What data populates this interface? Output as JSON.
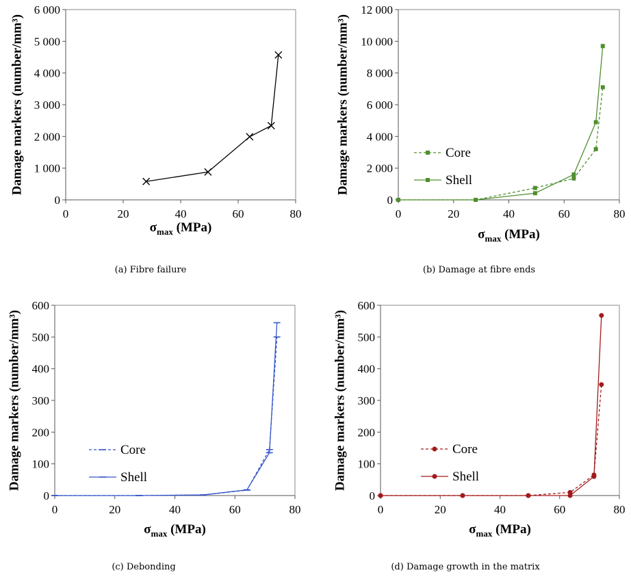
{
  "chart_data": [
    {
      "id": "a",
      "type": "line",
      "caption": "(a) Fibre failure",
      "ylabel": "Damage markers (number/mm³)",
      "xlabel_main": "σ",
      "xlabel_sub": "max",
      "xlabel_unit": " (MPa)",
      "xlim": [
        0,
        80
      ],
      "ylim": [
        0,
        6000
      ],
      "xticks": [
        0,
        20,
        40,
        60,
        80
      ],
      "xtick_labels": [
        "0",
        "20",
        "40",
        "60",
        "80"
      ],
      "yticks": [
        0,
        1000,
        2000,
        3000,
        4000,
        5000,
        6000
      ],
      "ytick_labels": [
        "0",
        "1 000",
        "2 000",
        "3 000",
        "4 000",
        "5 000",
        "6 000"
      ],
      "color": "#000000",
      "series": [
        {
          "name": "",
          "marker": "x",
          "dash": false,
          "x": [
            28,
            49.5,
            64,
            71.5,
            74
          ],
          "y": [
            580,
            880,
            1990,
            2340,
            4570
          ]
        }
      ]
    },
    {
      "id": "b",
      "type": "line",
      "caption": "(b) Damage at fibre ends",
      "ylabel": "Damage markers (number/mm³)",
      "xlabel_main": "σ",
      "xlabel_sub": "max",
      "xlabel_unit": " (MPa)",
      "xlim": [
        0,
        80
      ],
      "ylim": [
        0,
        12000
      ],
      "xticks": [
        0,
        20,
        40,
        60,
        80
      ],
      "xtick_labels": [
        "0",
        "20",
        "40",
        "60",
        "80"
      ],
      "yticks": [
        0,
        2000,
        4000,
        6000,
        8000,
        10000,
        12000
      ],
      "ytick_labels": [
        "0",
        "2 000",
        "4 000",
        "6 000",
        "8 000",
        "10 000",
        "12 000"
      ],
      "color": "#4f8f2f",
      "legend": {
        "position": "middle-left"
      },
      "series": [
        {
          "name": "Core",
          "marker": "square",
          "dash": true,
          "x": [
            0,
            28,
            49.5,
            63.5,
            71.5,
            74
          ],
          "y": [
            0,
            0,
            750,
            1350,
            3200,
            7100
          ]
        },
        {
          "name": "Shell",
          "marker": "square",
          "dash": false,
          "x": [
            0,
            28,
            49.5,
            63.5,
            71.5,
            74
          ],
          "y": [
            0,
            0,
            420,
            1600,
            4900,
            9700
          ]
        }
      ]
    },
    {
      "id": "c",
      "type": "line",
      "caption": "(c) Debonding",
      "ylabel": "Damage markers (number/mm³)",
      "xlabel_main": "σ",
      "xlabel_sub": "max",
      "xlabel_unit": " (MPa)",
      "xlim": [
        0,
        80
      ],
      "ylim": [
        0,
        600
      ],
      "xticks": [
        0,
        20,
        40,
        60,
        80
      ],
      "xtick_labels": [
        "0",
        "20",
        "40",
        "60",
        "80"
      ],
      "yticks": [
        0,
        100,
        200,
        300,
        400,
        500,
        600
      ],
      "ytick_labels": [
        "0",
        "100",
        "200",
        "300",
        "400",
        "500",
        "600"
      ],
      "color": "#3355cc",
      "legend": {
        "position": "lower-left"
      },
      "series": [
        {
          "name": "Core",
          "marker": "dash",
          "dash": true,
          "x": [
            0,
            28,
            49.5,
            64,
            71.5,
            74
          ],
          "y": [
            0,
            0,
            2,
            17,
            145,
            500
          ]
        },
        {
          "name": "Shell",
          "marker": "dash",
          "dash": false,
          "x": [
            0,
            28,
            49.5,
            64,
            71.5,
            74
          ],
          "y": [
            0,
            0,
            2,
            18,
            135,
            545
          ]
        }
      ]
    },
    {
      "id": "d",
      "type": "line",
      "caption": "(d) Damage growth in the matrix",
      "ylabel": "Damage markers (number/mm³)",
      "xlabel_main": "σ",
      "xlabel_sub": "max",
      "xlabel_unit": " (MPa)",
      "xlim": [
        0,
        80
      ],
      "ylim": [
        0,
        600
      ],
      "xticks": [
        0,
        20,
        40,
        60,
        80
      ],
      "xtick_labels": [
        "0",
        "20",
        "40",
        "60",
        "80"
      ],
      "yticks": [
        0,
        100,
        200,
        300,
        400,
        500,
        600
      ],
      "ytick_labels": [
        "0",
        "100",
        "200",
        "300",
        "400",
        "500",
        "600"
      ],
      "color": "#a31a1a",
      "legend": {
        "position": "lower-left"
      },
      "series": [
        {
          "name": "Core",
          "marker": "circle",
          "dash": true,
          "x": [
            0,
            27.5,
            49.5,
            63.5,
            71.5,
            74
          ],
          "y": [
            0,
            0,
            0,
            10,
            65,
            350
          ]
        },
        {
          "name": "Shell",
          "marker": "circle",
          "dash": false,
          "x": [
            0,
            27.5,
            49.5,
            63.5,
            71.5,
            74
          ],
          "y": [
            0,
            0,
            0,
            0,
            60,
            568
          ]
        }
      ]
    }
  ]
}
